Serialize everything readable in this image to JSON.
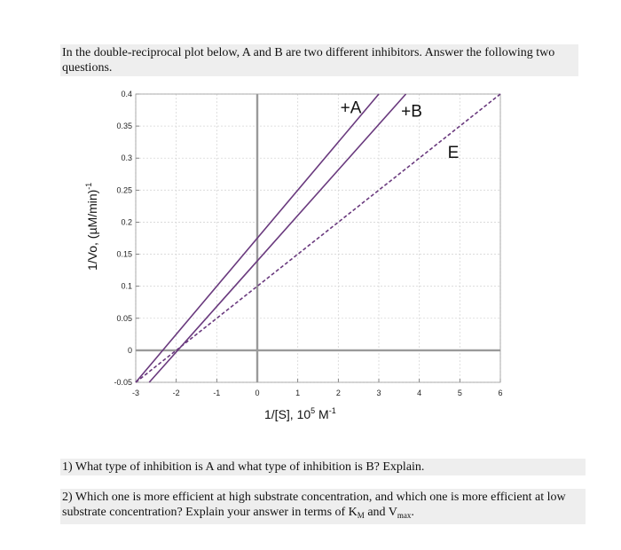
{
  "intro_text": "In the double-reciprocal plot below, A and B are two different inhibitors. Answer the following two questions.",
  "questions": [
    {
      "pre": "1) What type of inhibition is A and what type of inhibition is B? Explain."
    },
    {
      "pre": "2) Which one is more efficient at high substrate concentration, and which one is more efficient at low substrate concentration? Explain your answer in terms of K",
      "sub1": "M",
      "mid": " and V",
      "sub2": "max",
      "post": "."
    }
  ],
  "chart_data": {
    "type": "line",
    "title": "",
    "xlabel_main": "1/[S],  10",
    "xlabel_exp": "5",
    "xlabel_unit": " M",
    "xlabel_unit_exp": "-1",
    "ylabel_main": "1/Vo, (µM/min)",
    "ylabel_exp": "-1",
    "xlim": [
      -3,
      6
    ],
    "ylim": [
      -0.05,
      0.4
    ],
    "x_tick_labels": [
      "-3",
      "-2",
      "-1",
      "0",
      "1",
      "2",
      "3",
      "4",
      "5",
      "6"
    ],
    "y_tick_labels": [
      "-0.05",
      "0",
      "0.05",
      "0.1",
      "0.15",
      "0.2",
      "0.25",
      "0.3",
      "0.35",
      "0.4"
    ],
    "grid": true,
    "series": [
      {
        "name": "+A",
        "style": "solid",
        "color": "#6a3a7e",
        "points": [
          [
            -3,
            -0.05
          ],
          [
            3,
            0.4
          ]
        ]
      },
      {
        "name": "+B",
        "style": "solid",
        "color": "#6a3a7e",
        "points": [
          [
            -2.667,
            -0.05
          ],
          [
            3.667,
            0.4
          ]
        ]
      },
      {
        "name": "E",
        "style": "dashed",
        "color": "#6a3a7e",
        "points": [
          [
            -3,
            -0.05
          ],
          [
            6,
            0.4
          ]
        ]
      }
    ],
    "annotations": [
      {
        "text": "+A",
        "x": 2.05,
        "y": 0.37
      },
      {
        "text": "+B",
        "x": 3.55,
        "y": 0.365
      },
      {
        "text": "E",
        "x": 4.7,
        "y": 0.3
      }
    ]
  }
}
